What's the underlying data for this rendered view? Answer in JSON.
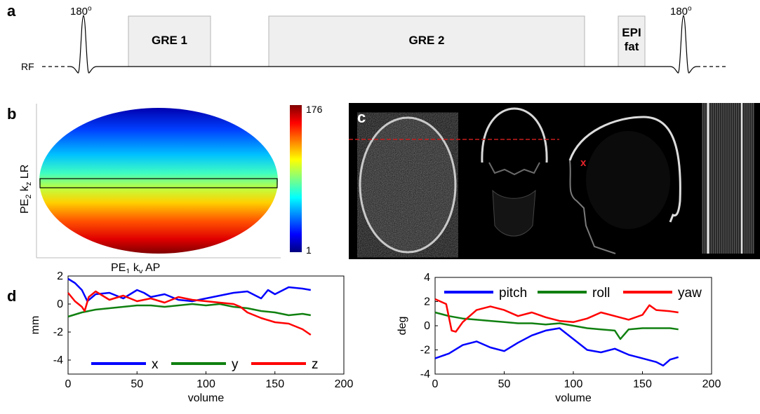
{
  "panels": {
    "a": "a",
    "b": "b",
    "c": "c",
    "d": "d"
  },
  "seq": {
    "pulse_left": "180",
    "pulse_right": "180",
    "degree_sup": "o",
    "rf_label": "RF",
    "boxes": [
      {
        "label": "GRE 1"
      },
      {
        "label": "GRE 2"
      },
      {
        "label_line1": "EPI",
        "label_line2": "fat"
      }
    ]
  },
  "kspace": {
    "ylabel": {
      "pe": "PE",
      "sub": "2",
      "k": " k",
      "ksub": "z",
      "rest": " LR"
    },
    "xlabel": {
      "pe": "PE",
      "sub": "1",
      "k": " k",
      "ksub": "y",
      "rest": " AP"
    },
    "colorbar": {
      "max": "176",
      "min": "1"
    }
  },
  "recon": {
    "marker": "x",
    "colors": {
      "marker": "#e8242a",
      "line": "#c81e1e"
    }
  },
  "chart_data": [
    {
      "type": "line",
      "xlabel": "volume",
      "ylabel": "mm",
      "xlim": [
        0,
        200
      ],
      "ylim": [
        -5,
        2
      ],
      "xticks": [
        "0",
        "50",
        "100",
        "150",
        "200"
      ],
      "yticks": [
        "2",
        "0",
        "-2",
        "-4"
      ],
      "legend_position": "bottom",
      "series": [
        {
          "name": "x",
          "color": "#0000ff",
          "x": [
            0,
            5,
            10,
            14,
            20,
            30,
            40,
            50,
            55,
            60,
            70,
            80,
            90,
            100,
            110,
            120,
            130,
            140,
            145,
            150,
            160,
            170,
            176
          ],
          "values": [
            1.8,
            1.5,
            1.0,
            0.2,
            0.7,
            0.8,
            0.4,
            1.0,
            0.8,
            0.5,
            0.7,
            0.3,
            0.2,
            0.4,
            0.6,
            0.8,
            0.9,
            0.4,
            1.0,
            0.7,
            1.2,
            1.1,
            1.0
          ]
        },
        {
          "name": "y",
          "color": "#108010",
          "x": [
            0,
            10,
            20,
            30,
            40,
            50,
            60,
            70,
            80,
            90,
            100,
            110,
            120,
            130,
            140,
            150,
            160,
            170,
            176
          ],
          "values": [
            -0.9,
            -0.6,
            -0.4,
            -0.3,
            -0.2,
            -0.1,
            -0.1,
            -0.2,
            -0.1,
            0.0,
            -0.1,
            0.0,
            -0.2,
            -0.3,
            -0.5,
            -0.6,
            -0.8,
            -0.7,
            -0.8
          ]
        },
        {
          "name": "z",
          "color": "#ff0000",
          "x": [
            0,
            5,
            10,
            12,
            15,
            20,
            30,
            40,
            50,
            60,
            70,
            80,
            90,
            100,
            110,
            120,
            125,
            130,
            140,
            150,
            160,
            170,
            176
          ],
          "values": [
            0.8,
            0.2,
            -0.2,
            -0.5,
            0.5,
            0.9,
            0.3,
            0.6,
            0.2,
            0.4,
            0.1,
            0.5,
            0.3,
            0.2,
            0.1,
            0.0,
            -0.2,
            -0.6,
            -1.0,
            -1.3,
            -1.4,
            -1.8,
            -2.2
          ]
        }
      ]
    },
    {
      "type": "line",
      "xlabel": "volume",
      "ylabel": "deg",
      "xlim": [
        0,
        200
      ],
      "ylim": [
        -4,
        4
      ],
      "xticks": [
        "0",
        "50",
        "100",
        "150",
        "200"
      ],
      "yticks": [
        "4",
        "2",
        "0",
        "-2",
        "-4"
      ],
      "legend_position": "top",
      "series": [
        {
          "name": "pitch",
          "color": "#0000ff",
          "x": [
            0,
            10,
            20,
            30,
            40,
            50,
            60,
            70,
            80,
            90,
            100,
            110,
            120,
            130,
            140,
            150,
            160,
            165,
            170,
            176
          ],
          "values": [
            -2.7,
            -2.3,
            -1.6,
            -1.3,
            -1.8,
            -2.1,
            -1.4,
            -0.8,
            -0.4,
            -0.2,
            -1.1,
            -2.0,
            -2.2,
            -1.9,
            -2.4,
            -2.7,
            -3.0,
            -3.3,
            -2.8,
            -2.6
          ]
        },
        {
          "name": "roll",
          "color": "#108010",
          "x": [
            0,
            10,
            20,
            30,
            40,
            50,
            60,
            70,
            80,
            90,
            100,
            110,
            120,
            130,
            134,
            140,
            150,
            160,
            170,
            176
          ],
          "values": [
            1.1,
            0.8,
            0.6,
            0.5,
            0.4,
            0.3,
            0.2,
            0.2,
            0.1,
            0.2,
            0.0,
            -0.2,
            -0.3,
            -0.4,
            -1.1,
            -0.3,
            -0.2,
            -0.2,
            -0.2,
            -0.3
          ]
        },
        {
          "name": "yaw",
          "color": "#ff0000",
          "x": [
            0,
            8,
            12,
            15,
            20,
            30,
            40,
            50,
            60,
            70,
            80,
            90,
            100,
            110,
            120,
            130,
            140,
            150,
            155,
            160,
            170,
            176
          ],
          "values": [
            2.2,
            1.8,
            -0.4,
            -0.5,
            0.3,
            1.3,
            1.6,
            1.3,
            0.8,
            1.1,
            0.7,
            0.4,
            0.3,
            0.6,
            1.1,
            0.8,
            0.5,
            0.9,
            1.7,
            1.3,
            1.2,
            1.1
          ]
        }
      ]
    }
  ]
}
